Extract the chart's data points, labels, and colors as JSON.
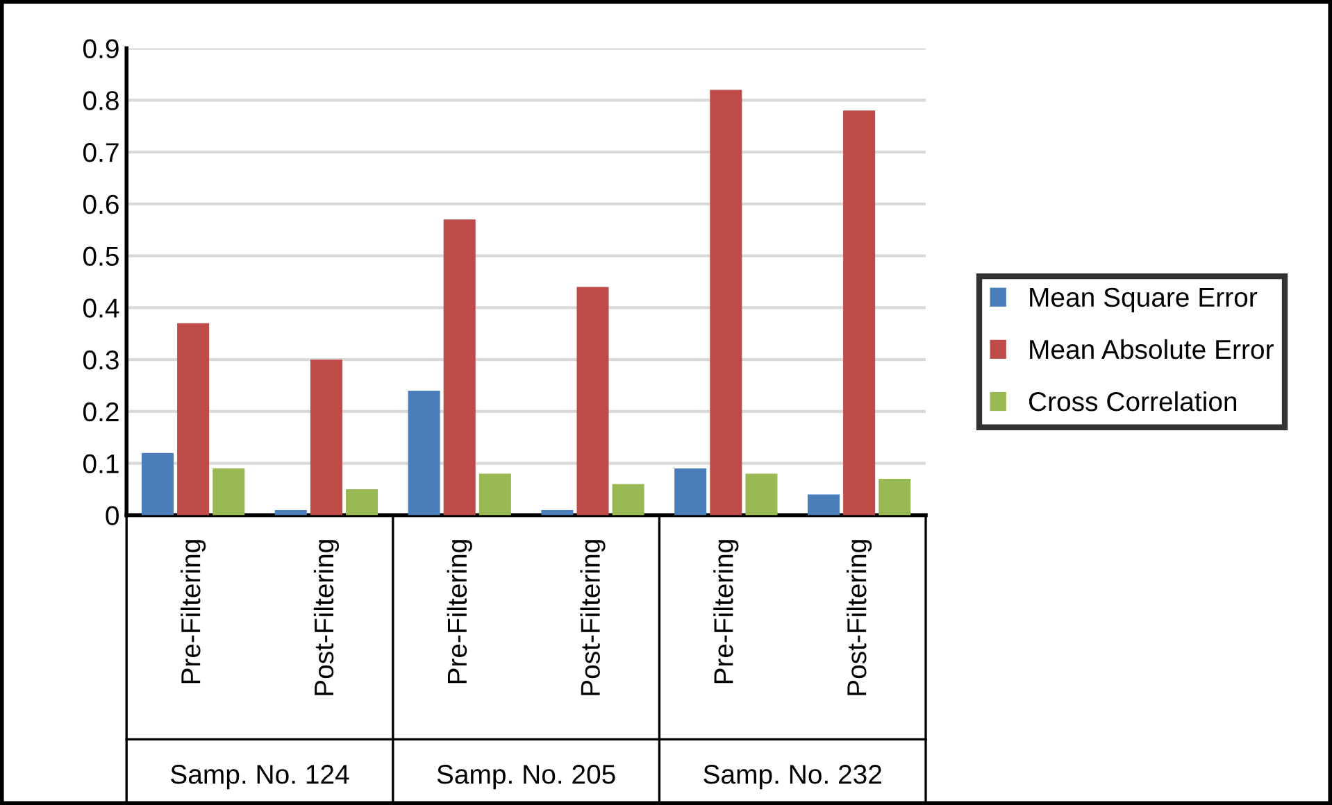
{
  "chart_data": {
    "type": "bar",
    "categories": [
      "Pre-Filtering",
      "Post-Filtering",
      "Pre-Filtering",
      "Post-Filtering",
      "Pre-Filtering",
      "Post-Filtering"
    ],
    "series": [
      {
        "name": "Mean Square Error",
        "color": "#4a7ebb",
        "values": [
          0.12,
          0.01,
          0.24,
          0.01,
          0.09,
          0.04
        ]
      },
      {
        "name": "Mean Absolute Error",
        "color": "#be4b48",
        "values": [
          0.37,
          0.3,
          0.57,
          0.44,
          0.82,
          0.78
        ]
      },
      {
        "name": "Cross Correlation",
        "color": "#98b954",
        "values": [
          0.09,
          0.05,
          0.08,
          0.06,
          0.08,
          0.07
        ]
      }
    ],
    "annotations": [
      "Samp. No. 124",
      "Samp. No. 205",
      "Samp. No. 232"
    ],
    "ylim": [
      0,
      0.9
    ],
    "yticks": [
      {
        "value": 0,
        "label": "0"
      },
      0.1,
      0.2,
      0.3,
      0.4,
      0.5,
      0.6,
      0.7,
      0.8,
      0.9
    ],
    "grid": "y",
    "legend": "right"
  }
}
